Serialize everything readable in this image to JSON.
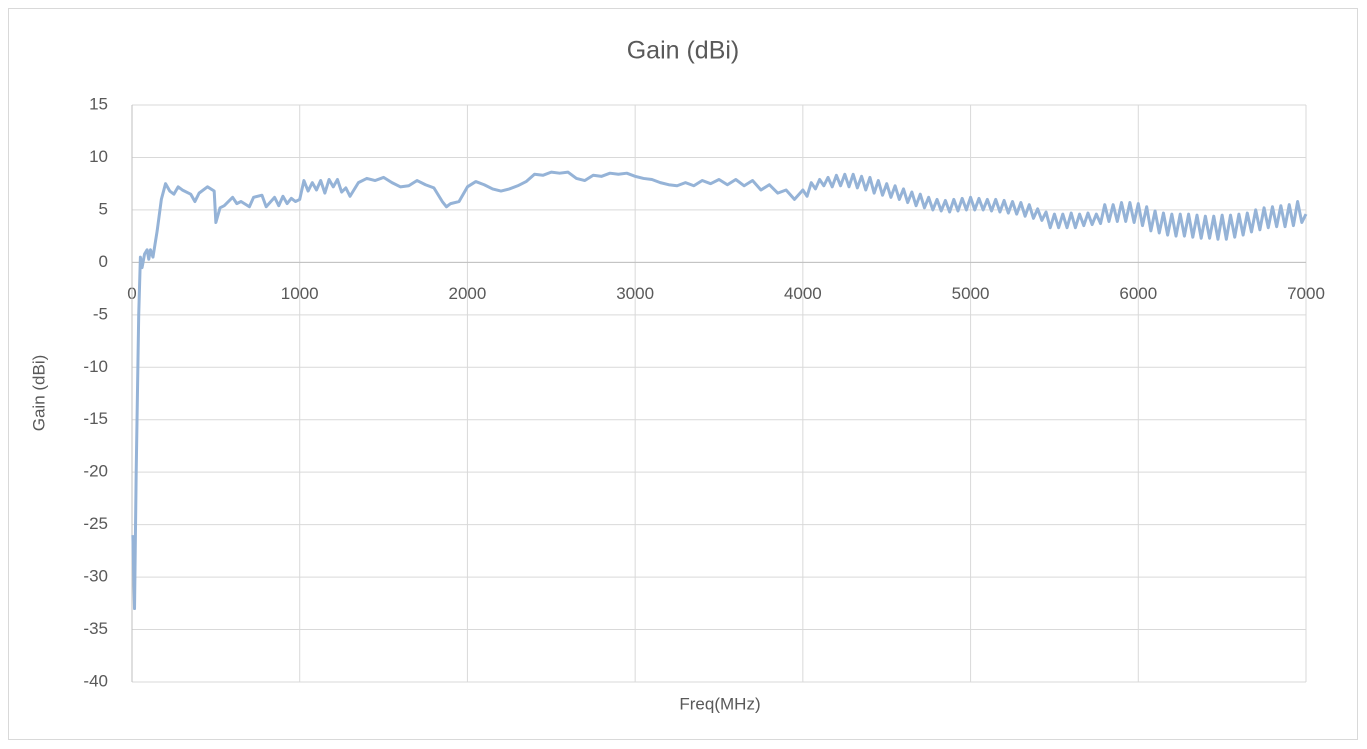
{
  "chart_data": {
    "type": "line",
    "title": "Gain (dBi)",
    "x_label": "Freq(MHz)",
    "y_label": "Gain (dBi)",
    "color": "#95b3d7",
    "x": [
      5,
      15,
      25,
      40,
      50,
      60,
      75,
      90,
      100,
      110,
      125,
      150,
      175,
      200,
      225,
      250,
      275,
      300,
      350,
      375,
      400,
      450,
      490,
      500,
      525,
      550,
      600,
      625,
      650,
      700,
      725,
      775,
      800,
      850,
      875,
      900,
      925,
      950,
      975,
      1000,
      1025,
      1050,
      1075,
      1100,
      1125,
      1150,
      1175,
      1200,
      1225,
      1250,
      1275,
      1300,
      1350,
      1400,
      1450,
      1500,
      1550,
      1600,
      1650,
      1700,
      1750,
      1800,
      1850,
      1875,
      1900,
      1950,
      2000,
      2050,
      2100,
      2150,
      2200,
      2250,
      2300,
      2350,
      2400,
      2450,
      2500,
      2550,
      2600,
      2650,
      2700,
      2750,
      2800,
      2850,
      2900,
      2950,
      3000,
      3050,
      3100,
      3150,
      3200,
      3250,
      3300,
      3350,
      3400,
      3450,
      3500,
      3550,
      3600,
      3650,
      3700,
      3750,
      3800,
      3850,
      3900,
      3950,
      4000,
      4025,
      4050,
      4075,
      4100,
      4125,
      4150,
      4175,
      4200,
      4225,
      4250,
      4275,
      4300,
      4325,
      4350,
      4375,
      4400,
      4425,
      4450,
      4475,
      4500,
      4525,
      4550,
      4575,
      4600,
      4625,
      4650,
      4675,
      4700,
      4725,
      4750,
      4775,
      4800,
      4825,
      4850,
      4875,
      4900,
      4925,
      4950,
      4975,
      5000,
      5025,
      5050,
      5075,
      5100,
      5125,
      5150,
      5175,
      5200,
      5225,
      5250,
      5275,
      5300,
      5325,
      5350,
      5375,
      5400,
      5425,
      5450,
      5475,
      5500,
      5525,
      5550,
      5575,
      5600,
      5625,
      5650,
      5675,
      5700,
      5725,
      5750,
      5775,
      5800,
      5825,
      5850,
      5875,
      5900,
      5925,
      5950,
      5975,
      6000,
      6025,
      6050,
      6075,
      6100,
      6125,
      6150,
      6175,
      6200,
      6225,
      6250,
      6275,
      6300,
      6325,
      6350,
      6375,
      6400,
      6425,
      6450,
      6475,
      6500,
      6525,
      6550,
      6575,
      6600,
      6625,
      6650,
      6675,
      6700,
      6725,
      6750,
      6775,
      6800,
      6825,
      6850,
      6875,
      6900,
      6925,
      6950,
      6975,
      7000
    ],
    "values": [
      -26,
      -33,
      -20,
      -5,
      0.5,
      -0.5,
      0.8,
      1.2,
      0.3,
      1.2,
      0.5,
      3,
      6,
      7.5,
      6.8,
      6.5,
      7.2,
      6.9,
      6.5,
      5.8,
      6.6,
      7.2,
      6.8,
      3.8,
      5.2,
      5.4,
      6.2,
      5.6,
      5.8,
      5.3,
      6.2,
      6.4,
      5.3,
      6.2,
      5.4,
      6.3,
      5.6,
      6.1,
      5.8,
      6,
      7.8,
      6.8,
      7.6,
      6.9,
      7.8,
      6.6,
      7.9,
      7.2,
      7.9,
      6.7,
      7.1,
      6.3,
      7.6,
      8.0,
      7.8,
      8.1,
      7.6,
      7.2,
      7.3,
      7.8,
      7.4,
      7.1,
      5.8,
      5.3,
      5.6,
      5.8,
      7.2,
      7.7,
      7.4,
      7.0,
      6.8,
      7.0,
      7.3,
      7.7,
      8.4,
      8.3,
      8.6,
      8.5,
      8.6,
      8.0,
      7.8,
      8.3,
      8.2,
      8.5,
      8.4,
      8.5,
      8.2,
      8.0,
      7.9,
      7.6,
      7.4,
      7.3,
      7.6,
      7.3,
      7.8,
      7.5,
      7.9,
      7.4,
      7.9,
      7.3,
      7.8,
      6.9,
      7.4,
      6.6,
      6.9,
      6.0,
      6.9,
      6.3,
      7.6,
      7.0,
      7.9,
      7.3,
      8.1,
      7.2,
      8.3,
      7.3,
      8.4,
      7.2,
      8.4,
      7.1,
      8.2,
      6.9,
      8.1,
      6.6,
      7.8,
      6.4,
      7.5,
      6.2,
      7.3,
      6.0,
      7.0,
      5.7,
      6.7,
      5.4,
      6.5,
      5.2,
      6.2,
      5.0,
      6.0,
      4.9,
      5.9,
      4.8,
      6.0,
      4.9,
      6.1,
      5.0,
      6.2,
      5.0,
      6.1,
      5.0,
      6.0,
      4.9,
      6.0,
      4.8,
      5.9,
      4.7,
      5.8,
      4.6,
      5.7,
      4.4,
      5.5,
      4.2,
      5.1,
      4.0,
      4.8,
      3.3,
      4.6,
      3.3,
      4.6,
      3.3,
      4.7,
      3.3,
      4.6,
      3.5,
      4.7,
      3.6,
      4.6,
      3.7,
      5.5,
      3.9,
      5.5,
      3.9,
      5.7,
      3.9,
      5.7,
      3.8,
      5.6,
      3.5,
      5.3,
      3.0,
      4.9,
      2.8,
      4.7,
      2.6,
      4.6,
      2.5,
      4.6,
      2.5,
      4.6,
      2.4,
      4.5,
      2.3,
      4.4,
      2.3,
      4.4,
      2.2,
      4.5,
      2.2,
      4.5,
      2.4,
      4.6,
      2.6,
      4.7,
      2.9,
      5.0,
      3.1,
      5.2,
      3.3,
      5.3,
      3.4,
      5.4,
      3.4,
      5.5,
      3.5,
      5.8,
      3.8,
      4.6
    ],
    "xlim": [
      0,
      7000
    ],
    "xticks": [
      0,
      1000,
      2000,
      3000,
      4000,
      5000,
      6000,
      7000
    ],
    "ylim": [
      -40,
      15
    ],
    "yticks": [
      -40,
      -35,
      -30,
      -25,
      -20,
      -15,
      -10,
      -5,
      0,
      5,
      10,
      15
    ],
    "grid": true
  }
}
